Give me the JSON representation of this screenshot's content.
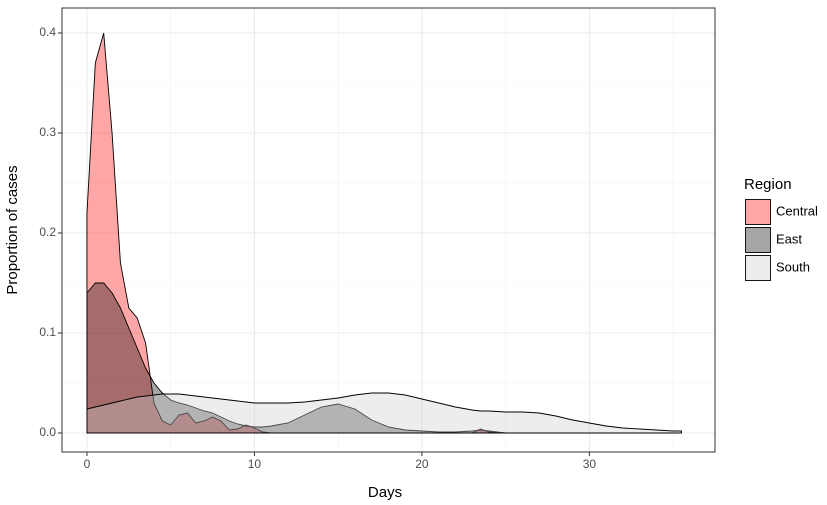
{
  "chart_data": {
    "type": "density",
    "x_label": "Days",
    "y_label": "Proportion of cases",
    "legend_title": "Region",
    "legend_position": "right",
    "alpha": 0.35,
    "grid": true,
    "x": [
      0,
      0.5,
      1,
      1.5,
      2,
      2.5,
      3,
      3.5,
      4,
      4.5,
      5,
      5.5,
      6,
      6.5,
      7,
      7.5,
      8,
      8.5,
      9,
      9.5,
      10,
      10.5,
      11,
      12,
      13,
      14,
      15,
      16,
      17,
      18,
      19,
      20,
      21,
      22,
      23,
      23.5,
      24,
      25,
      26,
      27,
      28,
      29,
      30,
      31,
      32,
      33,
      34,
      35,
      35.5
    ],
    "series": [
      {
        "name": "Central",
        "color": "#ff0000",
        "values": [
          0.22,
          0.37,
          0.4,
          0.3,
          0.17,
          0.125,
          0.115,
          0.09,
          0.03,
          0.012,
          0.008,
          0.018,
          0.02,
          0.01,
          0.012,
          0.016,
          0.012,
          0.003,
          0.004,
          0.008,
          0.005,
          0.001,
          0,
          0,
          0,
          0,
          0,
          0,
          0,
          0,
          0,
          0,
          0,
          0,
          0,
          0.004,
          0.001,
          0,
          null,
          null,
          null,
          null,
          null,
          null,
          null,
          null,
          null,
          null,
          null
        ]
      },
      {
        "name": "East",
        "color": "#000000",
        "values": [
          0.14,
          0.15,
          0.15,
          0.14,
          0.125,
          0.105,
          0.085,
          0.065,
          0.05,
          0.04,
          0.033,
          0.03,
          0.028,
          0.025,
          0.022,
          0.02,
          0.016,
          0.012,
          0.009,
          0.007,
          0.006,
          0.006,
          0.007,
          0.01,
          0.018,
          0.026,
          0.029,
          0.024,
          0.013,
          0.006,
          0.003,
          0.002,
          0.001,
          0.001,
          0.002,
          0.003,
          0.002,
          0,
          null,
          null,
          null,
          null,
          null,
          null,
          null,
          null,
          null,
          null,
          null
        ]
      },
      {
        "name": "South",
        "color": "#cccccc",
        "values": [
          0.024,
          0.026,
          0.028,
          0.03,
          0.032,
          0.034,
          0.036,
          0.037,
          0.038,
          0.039,
          0.039,
          0.039,
          0.038,
          0.037,
          0.036,
          0.035,
          0.034,
          0.033,
          0.032,
          0.031,
          0.03,
          0.03,
          0.03,
          0.03,
          0.031,
          0.033,
          0.035,
          0.038,
          0.04,
          0.04,
          0.038,
          0.034,
          0.03,
          0.026,
          0.023,
          0.022,
          0.022,
          0.021,
          0.021,
          0.02,
          0.017,
          0.013,
          0.01,
          0.007,
          0.005,
          0.004,
          0.003,
          0.002,
          0.002
        ]
      }
    ],
    "xlim": [
      -1.49,
      37.5
    ],
    "xticks": [
      0,
      10,
      20,
      30
    ],
    "minor_xticks": [
      5,
      15,
      25,
      35
    ],
    "ylim": [
      -0.019,
      0.425
    ],
    "yticks": [
      {
        "value": 0,
        "label": "0.0"
      },
      0.1,
      0.2,
      0.3,
      0.4
    ],
    "minor_yticks": [
      0.05,
      0.15,
      0.25,
      0.35
    ]
  }
}
